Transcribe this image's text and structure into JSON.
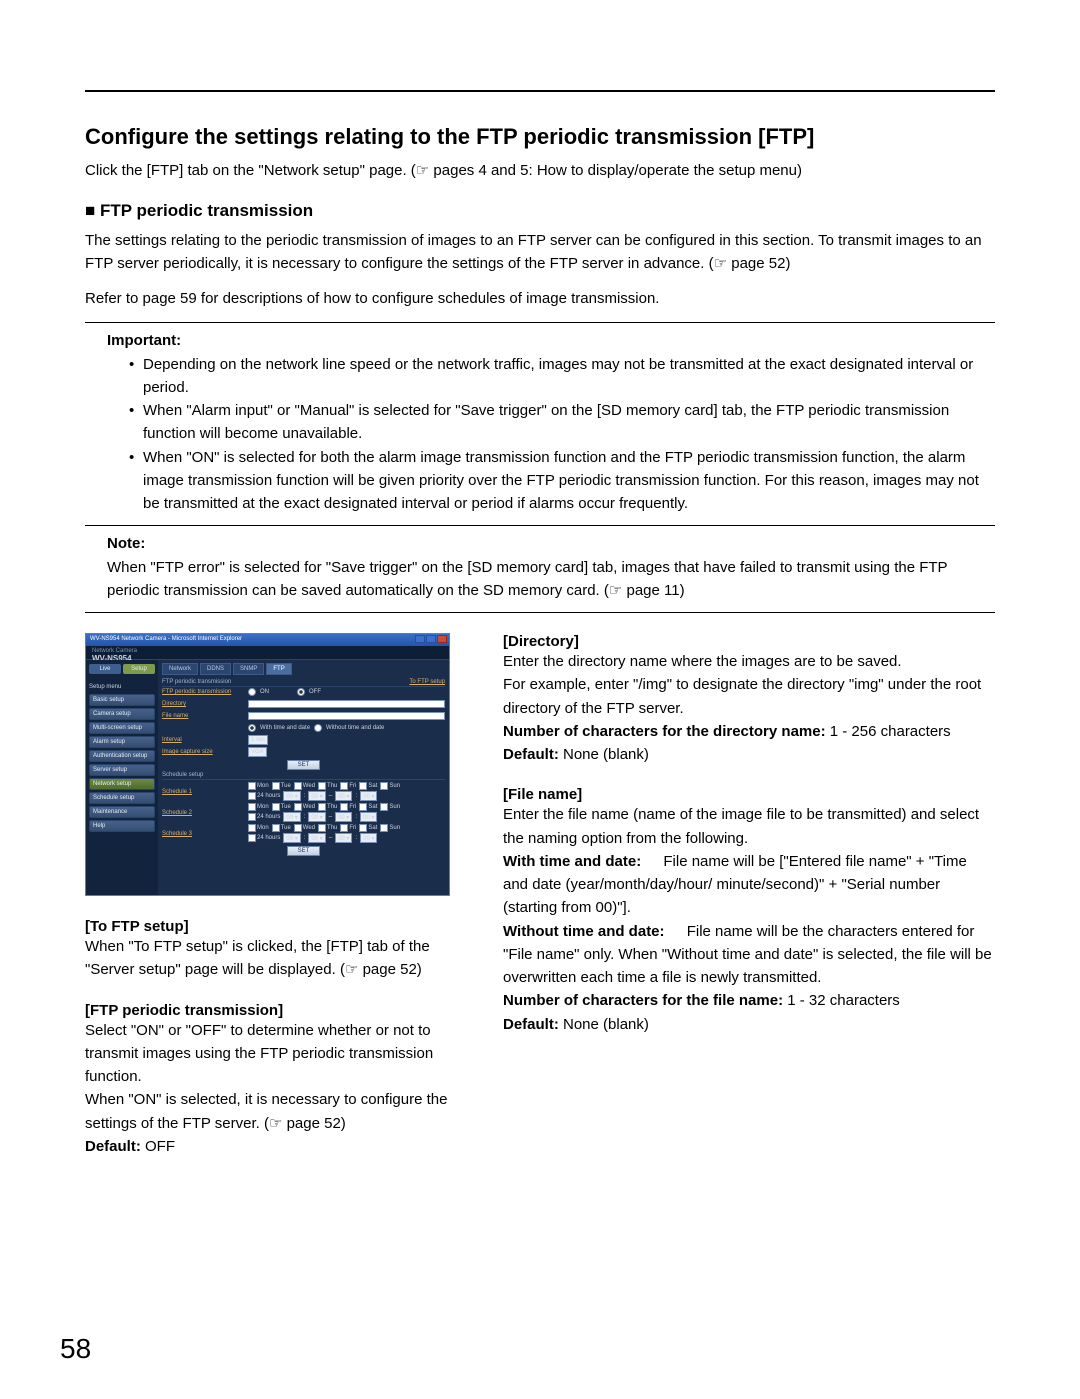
{
  "colors": {
    "text": "#000000",
    "rule": "#000000",
    "ss_bg": "#1a2d4a",
    "ss_sidebar": "#12233d",
    "ss_link": "#d8ae6a",
    "ss_tab_active": "#4a6ea0",
    "ss_btn_green": "#7d9b4b"
  },
  "fonts": {
    "body": "Arial",
    "body_size": 15,
    "title_size": 22,
    "subtitle_size": 17
  },
  "title": "Configure the settings relating to the FTP periodic transmission [FTP]",
  "lead": "Click the [FTP] tab on the \"Network setup\" page. (☞ pages 4 and 5: How to display/operate the setup menu)",
  "section_ftp_periodic_heading": "■ FTP periodic transmission",
  "section_ftp_periodic_p1": "The settings relating to the periodic transmission of images to an FTP server can be configured in this section. To transmit images to an FTP server periodically, it is necessary to configure the settings of the FTP server in advance. (☞ page 52)",
  "section_ftp_periodic_p2": "Refer to page 59 for descriptions of how to configure schedules of image transmission.",
  "important_label": "Important:",
  "important_items": [
    "Depending on the network line speed or the network traffic, images may not be transmitted at the exact designated interval or period.",
    "When \"Alarm input\" or \"Manual\" is selected for \"Save trigger\" on the [SD memory card] tab, the FTP periodic transmission function will become unavailable.",
    "When \"ON\" is selected for both the alarm image transmission function and the FTP periodic transmission function, the alarm image transmission function will be given priority over the FTP periodic transmission function. For this reason, images may not be transmitted at the exact designated interval or period if alarms occur frequently."
  ],
  "note_label": "Note:",
  "note_text": "When \"FTP error\" is selected for \"Save trigger\" on the [SD memory card] tab, images that have failed to transmit using the FTP periodic transmission can be saved automatically on the SD memory card. (☞ page 11)",
  "screenshot": {
    "window_title": "WV-NS954 Network Camera - Microsoft Internet Explorer",
    "header_sub": "Network Camera",
    "header_model": "WV-NS954",
    "topbtn_live": "Live",
    "topbtn_setup": "Setup",
    "menu_label": "Setup menu",
    "menu_items": [
      "Basic setup",
      "Camera setup",
      "Multi-screen setup",
      "Alarm setup",
      "Authentication setup",
      "Server setup",
      "Network setup",
      "Schedule setup",
      "Maintenance",
      "Help"
    ],
    "tabs": [
      "Network",
      "DDNS",
      "SNMP",
      "FTP"
    ],
    "sec1": "FTP periodic transmission",
    "to_ftp": "To FTP setup",
    "row_ftp": "FTP periodic transmission",
    "radio_on": "ON",
    "radio_off": "OFF",
    "row_dir": "Directory",
    "row_fname": "File name",
    "fname_with": "With time and date",
    "fname_without": "Without time and date",
    "row_interval": "Interval",
    "interval_val": "1 sec",
    "row_capsize": "Image capture size",
    "capsize_val": "VGA",
    "btn_set": "SET",
    "sec2": "Schedule setup",
    "schedules": [
      "Schedule 1",
      "Schedule 2",
      "Schedule 3"
    ],
    "days": [
      "Mon",
      "Tue",
      "Wed",
      "Thu",
      "Fri",
      "Sat",
      "Sun"
    ],
    "h24": "24 hours",
    "timesep": "–"
  },
  "left": {
    "to_ftp_head": "[To FTP setup]",
    "to_ftp_body": "When \"To FTP setup\" is clicked, the [FTP] tab of the \"Server setup\" page will be displayed. (☞ page 52)",
    "ftp_pt_head": "[FTP periodic transmission]",
    "ftp_pt_body1": "Select \"ON\" or \"OFF\" to determine whether or not to transmit images using the FTP periodic transmission function.",
    "ftp_pt_body2": "When \"ON\" is selected, it is necessary to configure the settings of the FTP server. (☞ page 52)",
    "default_label": "Default:",
    "default_val": " OFF"
  },
  "right": {
    "dir_head": "[Directory]",
    "dir_body1": "Enter the directory name where the images are to be saved.",
    "dir_body2": "For example, enter \"/img\" to designate the directory \"img\" under the root directory of the FTP server.",
    "dir_num_label": "Number of characters for the directory name:",
    "dir_num_val": " 1 - 256 characters",
    "default_label": "Default:",
    "dir_default_val": " None (blank)",
    "fname_head": "[File name]",
    "fname_body": "Enter the file name (name of the image file to be transmitted) and select the naming option from the following.",
    "with_label": "With time and date:",
    "with_text": " File name will be [\"Entered file name\" + \"Time and date (year/month/day/hour/ minute/second)\" + \"Serial number (starting from 00)\"].",
    "without_label": "Without time and date:",
    "without_text": " File name will be the characters entered for \"File name\" only. When \"Without time and date\" is selected, the file will be overwritten each time a file is newly transmitted.",
    "fname_num_label": "Number of characters for the file name:",
    "fname_num_val": " 1 - 32 characters",
    "fname_default_val": " None (blank)"
  },
  "page_number": "58"
}
